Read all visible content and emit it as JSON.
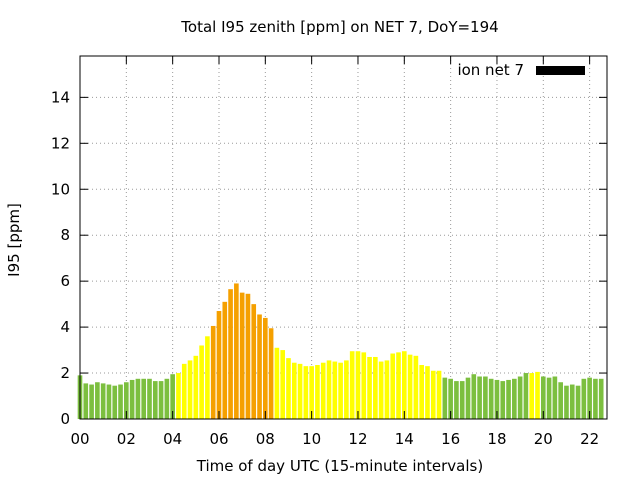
{
  "chart_data": {
    "type": "bar",
    "title": "Total I95 zenith [ppm] on NET 7, DoY=194",
    "xlabel": "Time of day UTC (15-minute intervals)",
    "ylabel": "I95 [ppm]",
    "xlim": [
      0,
      22.75
    ],
    "ylim": [
      0,
      15.8
    ],
    "xticks": [
      "00",
      "02",
      "04",
      "06",
      "08",
      "10",
      "12",
      "14",
      "16",
      "18",
      "20",
      "22"
    ],
    "yticks": [
      "0",
      "2",
      "4",
      "6",
      "8",
      "10",
      "12",
      "14"
    ],
    "grid": true,
    "legend": {
      "label": "ion net 7",
      "color": "#000000",
      "position": "top-right"
    },
    "bar_width_hours": 0.2,
    "level_colors": {
      "green": "#7cbf3f",
      "yellow": "#ffff00",
      "orange": "#f5a000"
    },
    "series": [
      {
        "name": "ion net 7",
        "x_start_hours": 0,
        "x_step_hours": 0.25,
        "values": [
          1.9,
          1.55,
          1.5,
          1.6,
          1.55,
          1.5,
          1.45,
          1.5,
          1.6,
          1.7,
          1.75,
          1.75,
          1.75,
          1.65,
          1.65,
          1.75,
          1.95,
          2.0,
          2.4,
          2.55,
          2.75,
          3.2,
          3.6,
          4.05,
          4.7,
          5.1,
          5.65,
          5.9,
          5.5,
          5.45,
          5.0,
          4.55,
          4.4,
          3.95,
          3.1,
          3.0,
          2.65,
          2.45,
          2.4,
          2.3,
          2.3,
          2.35,
          2.45,
          2.55,
          2.5,
          2.45,
          2.55,
          2.95,
          2.95,
          2.9,
          2.7,
          2.7,
          2.5,
          2.55,
          2.85,
          2.9,
          2.95,
          2.8,
          2.75,
          2.35,
          2.3,
          2.1,
          2.1,
          1.8,
          1.75,
          1.65,
          1.65,
          1.8,
          1.95,
          1.85,
          1.85,
          1.75,
          1.7,
          1.65,
          1.7,
          1.75,
          1.85,
          2.0,
          2.0,
          2.05,
          1.85,
          1.8,
          1.85,
          1.6,
          1.45,
          1.5,
          1.45,
          1.75,
          1.8,
          1.75,
          1.75
        ],
        "levels": [
          "green",
          "green",
          "green",
          "green",
          "green",
          "green",
          "green",
          "green",
          "green",
          "green",
          "green",
          "green",
          "green",
          "green",
          "green",
          "green",
          "green",
          "yellow",
          "yellow",
          "yellow",
          "yellow",
          "yellow",
          "yellow",
          "orange",
          "orange",
          "orange",
          "orange",
          "orange",
          "orange",
          "orange",
          "orange",
          "orange",
          "orange",
          "orange",
          "yellow",
          "yellow",
          "yellow",
          "yellow",
          "yellow",
          "yellow",
          "yellow",
          "yellow",
          "yellow",
          "yellow",
          "yellow",
          "yellow",
          "yellow",
          "yellow",
          "yellow",
          "yellow",
          "yellow",
          "yellow",
          "yellow",
          "yellow",
          "yellow",
          "yellow",
          "yellow",
          "yellow",
          "yellow",
          "yellow",
          "yellow",
          "yellow",
          "yellow",
          "green",
          "green",
          "green",
          "green",
          "green",
          "green",
          "green",
          "green",
          "green",
          "green",
          "green",
          "green",
          "green",
          "green",
          "green",
          "yellow",
          "yellow",
          "green",
          "green",
          "green",
          "green",
          "green",
          "green",
          "green",
          "green",
          "green",
          "green",
          "green"
        ]
      }
    ]
  }
}
